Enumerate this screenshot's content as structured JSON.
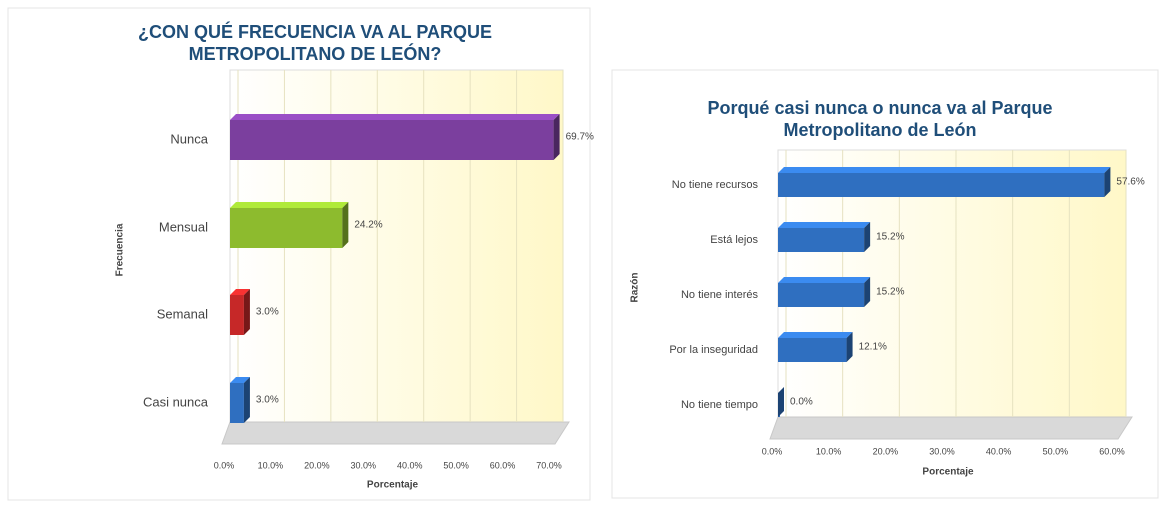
{
  "chart_data": [
    {
      "type": "bar",
      "orientation": "horizontal",
      "title": "¿CON QUÉ FRECUENCIA VA AL PARQUE METROPOLITANO DE LEÓN?",
      "y_label": "Frecuencia",
      "x_label": "Porcentaje",
      "categories": [
        "Nunca",
        "Mensual",
        "Semanal",
        "Casi nunca"
      ],
      "values": [
        69.7,
        24.2,
        3.0,
        3.0
      ],
      "value_labels": [
        "69.7%",
        "24.2%",
        "3.0%",
        "3.0%"
      ],
      "colors": [
        "#7b3f9e",
        "#8dbb2e",
        "#c62828",
        "#2f6fc0"
      ],
      "xlim": [
        0,
        70
      ],
      "xticks": [
        {
          "value": 0,
          "label": "0.0%"
        },
        {
          "value": 10,
          "label": "10.0%"
        },
        {
          "value": 20,
          "label": "20.0%"
        },
        {
          "value": 30,
          "label": "30.0%"
        },
        {
          "value": 40,
          "label": "40.0%"
        },
        {
          "value": 50,
          "label": "50.0%"
        },
        {
          "value": 60,
          "label": "60.0%"
        },
        {
          "value": 70,
          "label": "70.0%"
        }
      ],
      "grid": true
    },
    {
      "type": "bar",
      "orientation": "horizontal",
      "title": "Porqué casi nunca o nunca va al Parque Metropolitano de León",
      "y_label": "Razón",
      "x_label": "Porcentaje",
      "categories": [
        "No tiene recursos",
        "Está lejos",
        "No tiene interés",
        "Por la inseguridad",
        "No tiene tiempo"
      ],
      "values": [
        57.6,
        15.2,
        15.2,
        12.1,
        0.0
      ],
      "value_labels": [
        "57.6%",
        "15.2%",
        "15.2%",
        "12.1%",
        "0.0%"
      ],
      "colors": [
        "#2f6fc0",
        "#2f6fc0",
        "#2f6fc0",
        "#2f6fc0",
        "#2f6fc0"
      ],
      "xlim": [
        0,
        60
      ],
      "xticks": [
        {
          "value": 0,
          "label": "0.0%"
        },
        {
          "value": 10,
          "label": "10.0%"
        },
        {
          "value": 20,
          "label": "20.0%"
        },
        {
          "value": 30,
          "label": "30.0%"
        },
        {
          "value": 40,
          "label": "40.0%"
        },
        {
          "value": 50,
          "label": "50.0%"
        },
        {
          "value": 60,
          "label": "60.0%"
        }
      ],
      "grid": true
    }
  ]
}
